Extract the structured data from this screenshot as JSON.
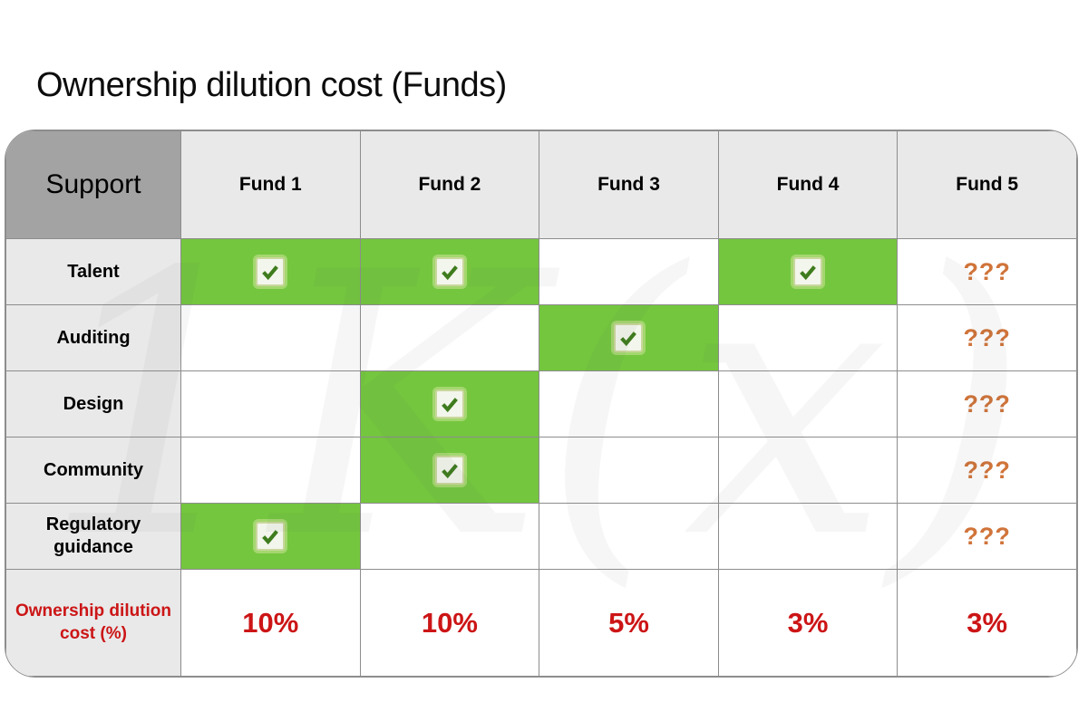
{
  "title": "Ownership dilution cost (Funds)",
  "watermark": "1K(x)",
  "colors": {
    "green": "#74c63e",
    "green_border": "#1e1e1e",
    "red": "#cc1516",
    "orange": "#d0743a",
    "corner_gray": "#a3a3a3",
    "header_gray": "#e9e9e9",
    "grid_border": "#8d8d8d",
    "check_stroke": "#3e7c1d",
    "checkbox_fill": "#f3f6ec",
    "checkbox_border": "#c9d79c"
  },
  "chart_data": {
    "type": "table",
    "title": "Ownership dilution cost (Funds)",
    "corner_header": "Support",
    "columns": [
      "Fund 1",
      "Fund 2",
      "Fund 3",
      "Fund 4",
      "Fund 5"
    ],
    "rows": [
      {
        "label": "Talent",
        "cells": [
          "check",
          "check",
          "",
          "check",
          "???"
        ]
      },
      {
        "label": "Auditing",
        "cells": [
          "",
          "",
          "check",
          "",
          "???"
        ]
      },
      {
        "label": "Design",
        "cells": [
          "",
          "check",
          "",
          "",
          "???"
        ]
      },
      {
        "label": "Community",
        "cells": [
          "",
          "check",
          "",
          "",
          "???"
        ]
      },
      {
        "label": "Regulatory guidance",
        "cells": [
          "check",
          "",
          "",
          "",
          "???"
        ]
      }
    ],
    "footer_row": {
      "label": "Ownership dilution cost (%)",
      "values": [
        "10%",
        "10%",
        "5%",
        "3%",
        "3%"
      ]
    }
  }
}
